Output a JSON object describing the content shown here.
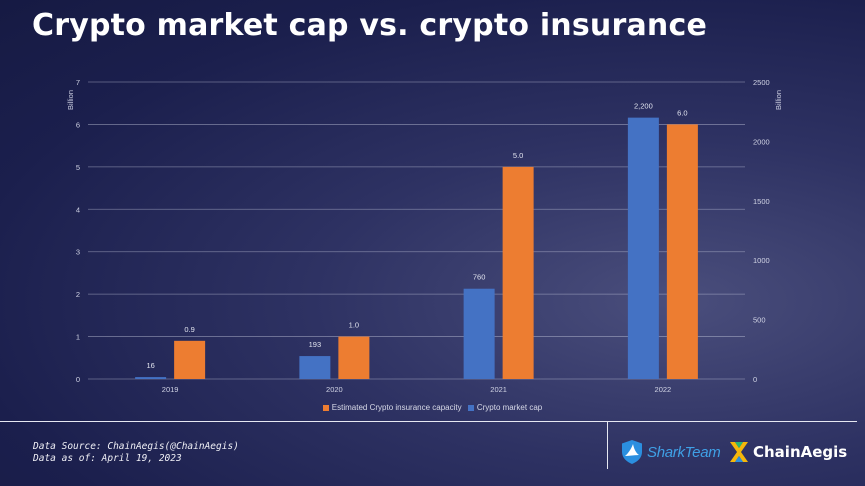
{
  "title": "Crypto market cap vs. crypto insurance",
  "chart_data": {
    "type": "bar",
    "title": "Crypto market cap vs. crypto insurance",
    "categories": [
      "2019",
      "2020",
      "2021",
      "2022"
    ],
    "series": [
      {
        "name": "Crypto market cap",
        "axis": "right",
        "color": "#4472c4",
        "values": [
          16,
          193,
          760,
          2200
        ],
        "labels": [
          "16",
          "193",
          "760",
          "2,200"
        ]
      },
      {
        "name": "Estimated Crypto insurance capacity",
        "axis": "left",
        "color": "#ed7d31",
        "values": [
          0.9,
          1.0,
          5.0,
          6.0
        ],
        "labels": [
          "0.9",
          "1.0",
          "5.0",
          "6.0"
        ]
      }
    ],
    "left_axis": {
      "label": "Billion",
      "min": 0,
      "max": 7,
      "ticks": [
        "0",
        "1",
        "2",
        "3",
        "4",
        "5",
        "6",
        "7"
      ]
    },
    "right_axis": {
      "label": "Billion",
      "min": 0,
      "max": 2500,
      "ticks": [
        "0",
        "500",
        "1000",
        "1500",
        "2000",
        "2500"
      ]
    },
    "grid": true,
    "legend": "bottom-center"
  },
  "legend": {
    "insurance_label": "Estimated Crypto insurance capacity",
    "marketcap_label": "Crypto market cap"
  },
  "footer": {
    "source": "Data Source: ChainAegis(@ChainAegis)",
    "date": "Data as of: April 19, 2023"
  },
  "logos": {
    "sharkteam": "SharkTeam",
    "chainaegis": "ChainAegis"
  }
}
